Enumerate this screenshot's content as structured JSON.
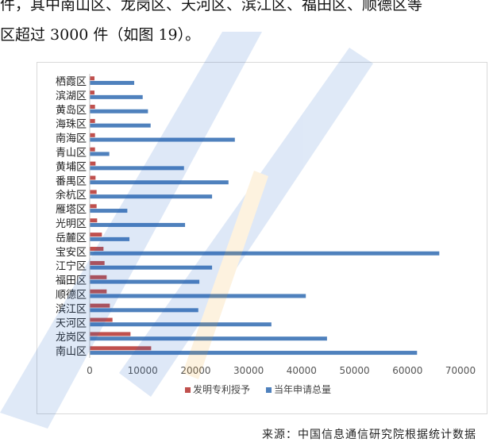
{
  "text": {
    "line1": "件，其中南山区、龙岗区、天河区、滨江区、福田区、顺德区等",
    "line2": "区超过 3000 件（如图 19）。",
    "source": "来源：中国信息通信研究院根据统计数据"
  },
  "colors": {
    "invent": "#c0504d",
    "apply": "#4f81bd",
    "watermark_blue": "#1f63c8",
    "watermark_orange": "#f5a623"
  },
  "chart_data": {
    "type": "bar",
    "orientation": "horizontal",
    "categories": [
      "栖霞区",
      "滨湖区",
      "黄岛区",
      "海珠区",
      "南海区",
      "青山区",
      "黄埔区",
      "番禺区",
      "余杭区",
      "雁塔区",
      "光明区",
      "岳麓区",
      "宝安区",
      "江宁区",
      "福田区",
      "顺德区",
      "滨江区",
      "天河区",
      "龙岗区",
      "南山区"
    ],
    "series": [
      {
        "name": "发明专利授予",
        "values": [
          900,
          900,
          1000,
          1000,
          1000,
          1000,
          1100,
          1100,
          1300,
          1300,
          1400,
          2300,
          2600,
          2800,
          3200,
          3200,
          3800,
          4300,
          7700,
          11600
        ]
      },
      {
        "name": "当年申请总量",
        "values": [
          8400,
          10000,
          11000,
          11500,
          27400,
          3700,
          17800,
          26200,
          23100,
          7100,
          18000,
          7500,
          66000,
          23100,
          20700,
          40800,
          20500,
          34300,
          44800,
          61800
        ]
      }
    ],
    "xlim": [
      0,
      70000
    ],
    "xticks": [
      "0",
      "10000",
      "20000",
      "30000",
      "40000",
      "50000",
      "60000",
      "70000"
    ],
    "legend_position": "bottom",
    "grid": false
  }
}
